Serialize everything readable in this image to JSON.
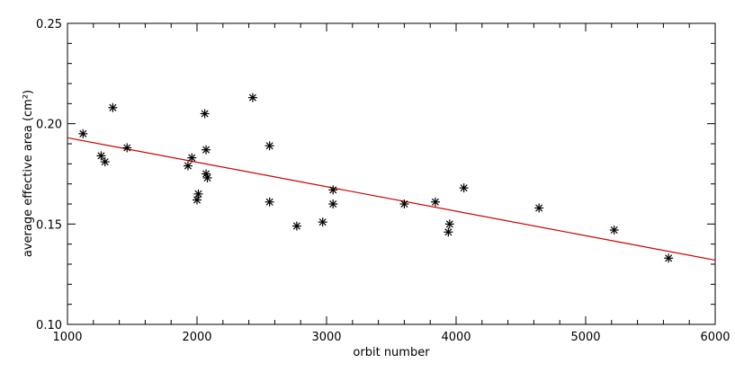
{
  "chart_data": {
    "type": "scatter",
    "xlabel": "orbit number",
    "ylabel": "average effective area (cm²)",
    "xlim": [
      1000,
      6000
    ],
    "ylim": [
      0.1,
      0.25
    ],
    "xticks": [
      1000,
      2000,
      3000,
      4000,
      5000,
      6000
    ],
    "xtick_labels": [
      "1000",
      "2000",
      "3000",
      "4000",
      "5000",
      "6000"
    ],
    "yticks": [
      0.1,
      0.15,
      0.2,
      0.25
    ],
    "ytick_labels": [
      "0.10",
      "0.15",
      "0.20",
      "0.25"
    ],
    "grid": false,
    "series": [
      {
        "marker": "asterisk",
        "color": "#000000",
        "points": [
          [
            1120,
            0.195
          ],
          [
            1260,
            0.184
          ],
          [
            1290,
            0.181
          ],
          [
            1350,
            0.208
          ],
          [
            1460,
            0.188
          ],
          [
            1930,
            0.179
          ],
          [
            1960,
            0.183
          ],
          [
            2000,
            0.162
          ],
          [
            2010,
            0.165
          ],
          [
            2060,
            0.205
          ],
          [
            2070,
            0.187
          ],
          [
            2070,
            0.175
          ],
          [
            2080,
            0.173
          ],
          [
            2430,
            0.213
          ],
          [
            2560,
            0.189
          ],
          [
            2560,
            0.161
          ],
          [
            2770,
            0.149
          ],
          [
            2970,
            0.151
          ],
          [
            3050,
            0.167
          ],
          [
            3050,
            0.16
          ],
          [
            3600,
            0.16
          ],
          [
            3840,
            0.161
          ],
          [
            3940,
            0.146
          ],
          [
            3950,
            0.15
          ],
          [
            4060,
            0.168
          ],
          [
            4640,
            0.158
          ],
          [
            5220,
            0.147
          ],
          [
            5640,
            0.133
          ]
        ]
      }
    ],
    "fit_line": {
      "color": "#cc0000",
      "x": [
        1000,
        6000
      ],
      "y": [
        0.193,
        0.132
      ]
    }
  }
}
